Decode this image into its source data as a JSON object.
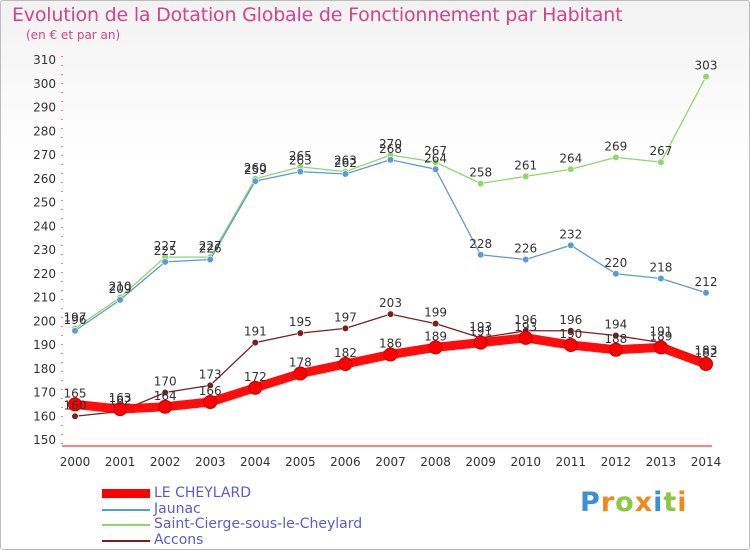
{
  "title": "Evolution de la Dotation Globale de Fonctionnement par Habitant",
  "subtitle": "(en € et par an)",
  "logo_text": "Proxiti",
  "chart_data": {
    "type": "line",
    "title": "Evolution de la Dotation Globale de Fonctionnement par Habitant",
    "subtitle": "(en € et par an)",
    "x": [
      2000,
      2001,
      2002,
      2003,
      2004,
      2005,
      2006,
      2007,
      2008,
      2009,
      2010,
      2011,
      2012,
      2013,
      2014
    ],
    "ylim": [
      150,
      310
    ],
    "yticks": [
      150,
      160,
      170,
      180,
      190,
      200,
      210,
      220,
      230,
      240,
      250,
      260,
      270,
      280,
      290,
      300,
      310
    ],
    "grid": false,
    "legend_position": "bottom-left",
    "series": [
      {
        "name": "LE CHEYLARD",
        "color": "#ff0000",
        "values": [
          165,
          163,
          164,
          166,
          172,
          178,
          182,
          186,
          189,
          191,
          193,
          190,
          188,
          189,
          182
        ]
      },
      {
        "name": "Jaunac",
        "color": "#5b9bd5",
        "values": [
          196,
          209,
          225,
          226,
          259,
          263,
          262,
          268,
          264,
          228,
          226,
          232,
          220,
          218,
          212
        ]
      },
      {
        "name": "Saint-Cierge-sous-le-Cheylard",
        "color": "#8fd66b",
        "values": [
          197,
          210,
          227,
          227,
          260,
          265,
          263,
          270,
          267,
          258,
          261,
          264,
          269,
          267,
          303
        ]
      },
      {
        "name": "Accons",
        "color": "#7a1f1f",
        "values": [
          160,
          162,
          170,
          173,
          191,
          195,
          197,
          203,
          199,
          193,
          196,
          196,
          194,
          191,
          183
        ]
      }
    ]
  }
}
